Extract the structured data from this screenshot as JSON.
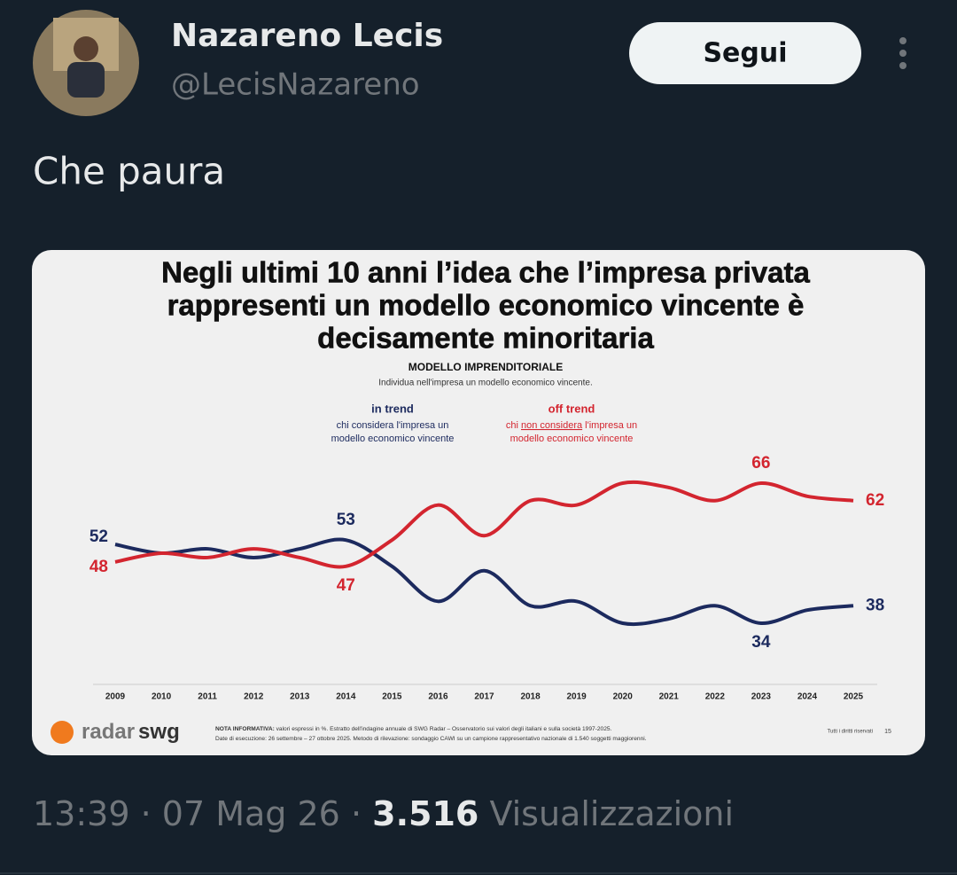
{
  "tweet": {
    "name": "Nazareno Lecis",
    "handle": "@LecisNazareno",
    "follow": "Segui",
    "text": "Che paura",
    "time": "13:39",
    "separator": "·",
    "date": "07 Mag 26",
    "views": "3.516",
    "views_label": "Visualizzazioni"
  },
  "chart_data": {
    "type": "line",
    "title": [
      "Negli ultimi 10 anni l’idea che l’impresa privata",
      "rappresenti un modello economico vincente è",
      "decisamente minoritaria"
    ],
    "subtitle": "MODELLO IMPRENDITORIALE",
    "question": "Individua nell'impresa un modello economico vincente.",
    "categories": [
      "2009",
      "2010",
      "2011",
      "2012",
      "2013",
      "2014",
      "2015",
      "2016",
      "2017",
      "2018",
      "2019",
      "2020",
      "2021",
      "2022",
      "2023",
      "2024",
      "2025"
    ],
    "series": [
      {
        "name": "in trend",
        "color": "#1c2a5e",
        "description": [
          [
            "chi considera l'impresa un"
          ],
          [
            "modello economico vincente"
          ]
        ],
        "values": [
          52,
          50,
          51,
          49,
          51,
          53,
          47,
          39,
          46,
          38,
          39,
          34,
          35,
          38,
          34,
          37,
          38
        ]
      },
      {
        "name": "off trend",
        "color": "#d3252f",
        "description": [
          [
            "chi ",
            "non considera",
            " l'impresa un"
          ],
          [
            "modello economico vincente"
          ]
        ],
        "values": [
          48,
          50,
          49,
          51,
          49,
          47,
          53,
          61,
          54,
          62,
          61,
          66,
          65,
          62,
          66,
          63,
          62
        ]
      }
    ],
    "logo": [
      "radar",
      "swg"
    ],
    "note": [
      [
        "NOTA INFORMATIVA:",
        " valori espressi in %. Estratto dell'indagine annuale di SWG Radar – Osservatorio sui valori degli italiani e sulla società 1997-2025."
      ],
      [
        "Date di esecuzione: 26 settembre – 27 ottobre 2025. Metodo di rilevazione: sondaggio CAWI su un campione rappresentativo nazionale di 1.540 soggetti maggiorenni."
      ]
    ],
    "rights": "Tutti i diritti riservati",
    "page": "15"
  }
}
